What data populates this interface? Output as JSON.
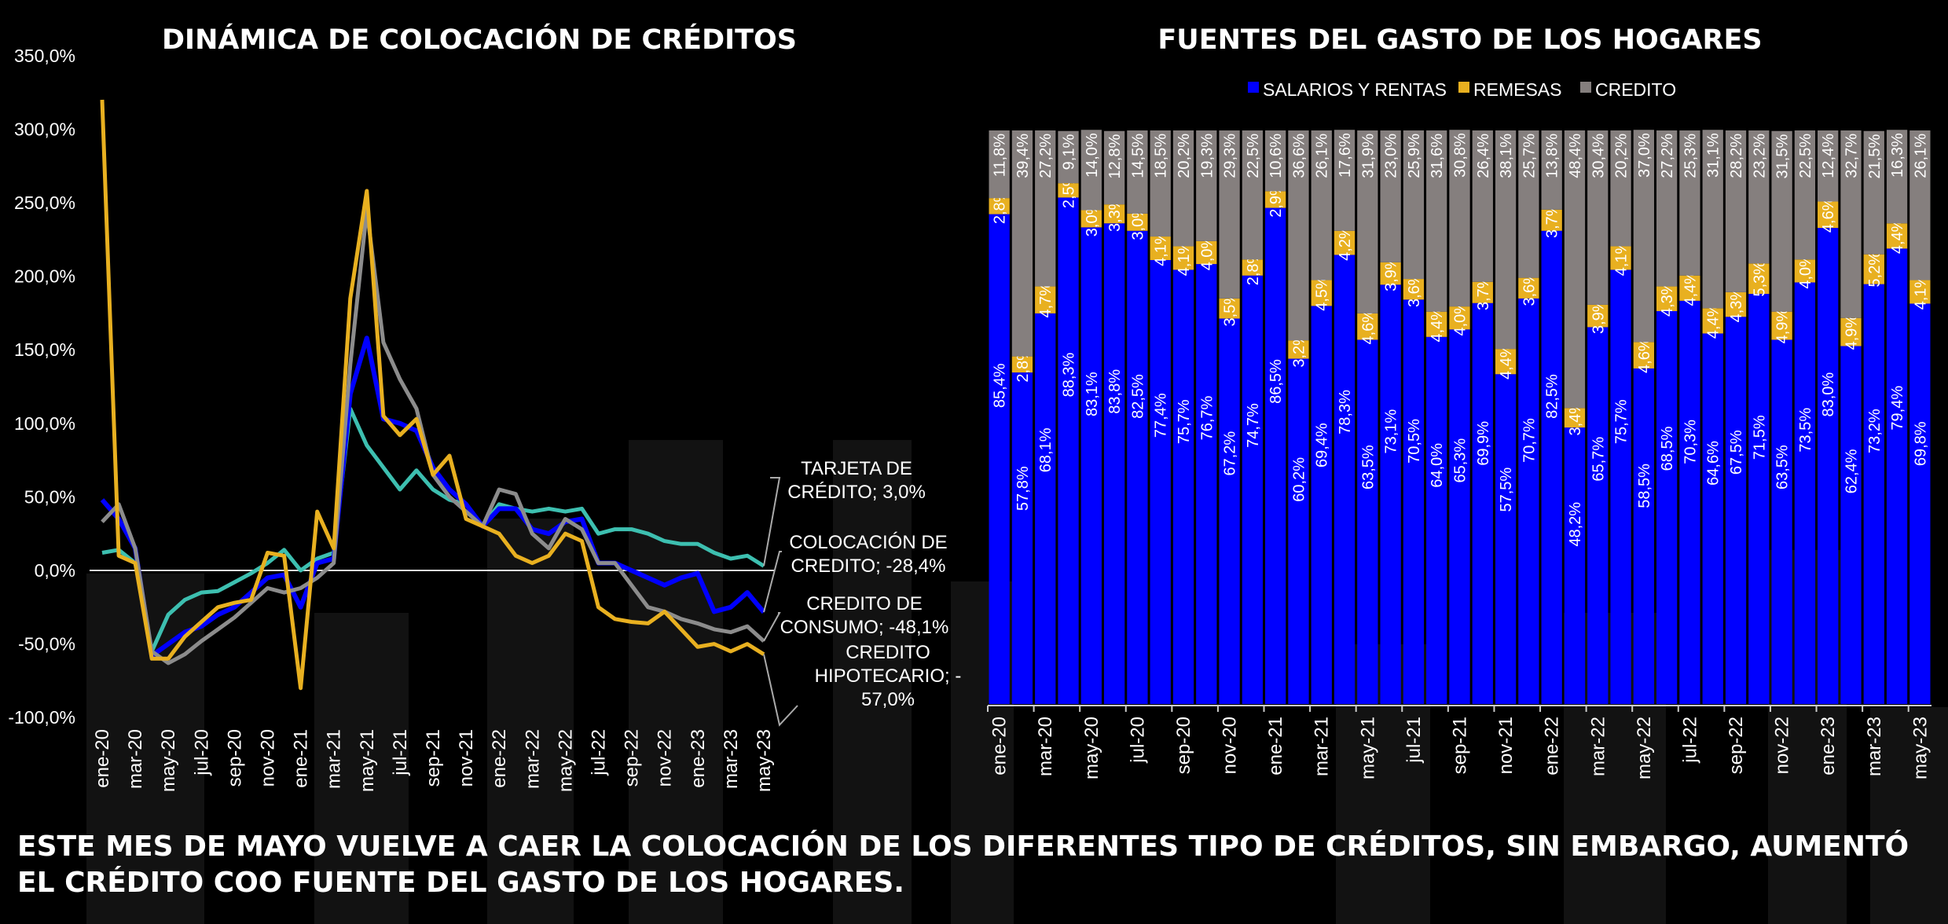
{
  "footer_text": "ESTE MES DE MAYO VUELVE A CAER LA COLOCACIÓN DE LOS DIFERENTES TIPO DE CRÉDITOS, SIN EMBARGO, AUMENTÓ EL CRÉDITO COO FUENTE DEL GASTO DE LOS HOGARES.",
  "chart_data": [
    {
      "type": "line",
      "title": "DINÁMICA DE COLOCACIÓN DE CRÉDITOS",
      "ylim": [
        -100,
        350
      ],
      "yticks": [
        "350,0%",
        "300,0%",
        "250,0%",
        "200,0%",
        "150,0%",
        "100,0%",
        "50,0%",
        "0,0%",
        "-50,0%",
        "-100,0%"
      ],
      "grid": false,
      "categories": [
        "ene-20",
        "feb-20",
        "mar-20",
        "abr-20",
        "may-20",
        "jun-20",
        "jul-20",
        "ago-20",
        "sep-20",
        "oct-20",
        "nov-20",
        "dic-20",
        "ene-21",
        "feb-21",
        "mar-21",
        "abr-21",
        "may-21",
        "jun-21",
        "jul-21",
        "ago-21",
        "sep-21",
        "oct-21",
        "nov-21",
        "dic-21",
        "ene-22",
        "feb-22",
        "mar-22",
        "abr-22",
        "may-22",
        "jun-22",
        "jul-22",
        "ago-22",
        "sep-22",
        "oct-22",
        "nov-22",
        "dic-22",
        "ene-23",
        "feb-23",
        "mar-23",
        "abr-23",
        "may-23"
      ],
      "xtick_labels": [
        "ene-20",
        "mar-20",
        "may-20",
        "jul-20",
        "sep-20",
        "nov-20",
        "ene-21",
        "mar-21",
        "may-21",
        "jul-21",
        "sep-21",
        "nov-21",
        "ene-22",
        "mar-22",
        "may-22",
        "jul-22",
        "sep-22",
        "nov-22",
        "ene-23",
        "mar-23",
        "may-23"
      ],
      "series": [
        {
          "label": "TARJETA DE CRÉDITO; 3,0%",
          "color": "#3dbfb0",
          "values": [
            12,
            14,
            5,
            -55,
            -30,
            -20,
            -15,
            -14,
            -8,
            -2,
            5,
            14,
            0,
            8,
            12,
            110,
            85,
            70,
            55,
            68,
            55,
            48,
            45,
            30,
            45,
            42,
            40,
            42,
            40,
            42,
            25,
            28,
            28,
            25,
            20,
            18,
            18,
            12,
            8,
            10,
            3
          ]
        },
        {
          "label": "COLOCACIÓN DE CREDITO; -28,4%",
          "color": "#0000ff",
          "values": [
            48,
            35,
            15,
            -58,
            -50,
            -42,
            -38,
            -30,
            -25,
            -15,
            -5,
            -3,
            -25,
            5,
            8,
            120,
            158,
            103,
            100,
            95,
            70,
            55,
            45,
            30,
            42,
            42,
            28,
            25,
            33,
            35,
            5,
            5,
            0,
            -5,
            -10,
            -5,
            -2,
            -28,
            -25,
            -15,
            -28.4
          ]
        },
        {
          "label": "CREDITO DE CONSUMO; -48,1%",
          "color": "#8c8c8c",
          "values": [
            33,
            45,
            15,
            -55,
            -63,
            -57,
            -48,
            -40,
            -32,
            -22,
            -12,
            -15,
            -12,
            -5,
            5,
            140,
            245,
            155,
            130,
            110,
            65,
            50,
            40,
            30,
            55,
            52,
            25,
            15,
            35,
            28,
            5,
            5,
            -10,
            -25,
            -28,
            -33,
            -36,
            -40,
            -42,
            -38,
            -48.1
          ]
        },
        {
          "label": "CREDITO HIPOTECARIO; -57,0%",
          "color": "#e8b020",
          "values": [
            320,
            10,
            5,
            -60,
            -60,
            -45,
            -35,
            -25,
            -22,
            -20,
            12,
            10,
            -80,
            40,
            15,
            185,
            258,
            105,
            92,
            103,
            65,
            78,
            35,
            30,
            25,
            10,
            5,
            10,
            25,
            20,
            -25,
            -33,
            -35,
            -36,
            -28,
            -40,
            -52,
            -50,
            -55,
            -50,
            -57
          ]
        }
      ]
    },
    {
      "type": "bar",
      "stacked": true,
      "title": "FUENTES DEL GASTO DE LOS HOGARES",
      "ylim": [
        0,
        100
      ],
      "legend": "top",
      "categories": [
        "ene-20",
        "feb-20",
        "mar-20",
        "abr-20",
        "may-20",
        "jun-20",
        "jul-20",
        "ago-20",
        "sep-20",
        "oct-20",
        "nov-20",
        "dic-20",
        "ene-21",
        "feb-21",
        "mar-21",
        "abr-21",
        "may-21",
        "jun-21",
        "jul-21",
        "ago-21",
        "sep-21",
        "oct-21",
        "nov-21",
        "dic-21",
        "ene-22",
        "feb-22",
        "mar-22",
        "abr-22",
        "may-22",
        "jun-22",
        "jul-22",
        "ago-22",
        "sep-22",
        "oct-22",
        "nov-22",
        "dic-22",
        "ene-23",
        "feb-23",
        "mar-23",
        "abr-23",
        "may-23"
      ],
      "xtick_labels": [
        "ene-20",
        "mar-20",
        "may-20",
        "jul-20",
        "sep-20",
        "nov-20",
        "ene-21",
        "mar-21",
        "may-21",
        "jul-21",
        "sep-21",
        "nov-21",
        "ene-22",
        "mar-22",
        "may-22",
        "jul-22",
        "sep-22",
        "nov-22",
        "ene-23",
        "mar-23",
        "may-23"
      ],
      "series": [
        {
          "name": "SALARIOS Y RENTAS",
          "color": "#0000ff",
          "values": [
            85.4,
            57.8,
            68.1,
            88.3,
            83.1,
            83.8,
            82.5,
            77.4,
            75.7,
            76.7,
            67.2,
            74.7,
            86.5,
            60.2,
            69.4,
            78.3,
            63.5,
            73.1,
            70.5,
            64.0,
            65.3,
            69.9,
            57.5,
            70.7,
            82.5,
            48.2,
            65.7,
            75.7,
            58.5,
            68.5,
            70.3,
            64.6,
            67.5,
            71.5,
            63.5,
            73.5,
            83.0,
            62.4,
            73.2,
            79.4,
            69.8
          ]
        },
        {
          "name": "REMESAS",
          "color": "#e8b020",
          "values": [
            2.8,
            2.8,
            4.7,
            2.5,
            3.0,
            3.3,
            3.0,
            4.1,
            4.1,
            4.0,
            3.5,
            2.8,
            2.9,
            3.2,
            4.5,
            4.2,
            4.6,
            3.9,
            3.6,
            4.4,
            4.0,
            3.7,
            4.4,
            3.6,
            3.7,
            3.4,
            3.9,
            4.1,
            4.6,
            4.3,
            4.4,
            4.4,
            4.3,
            5.3,
            4.9,
            4.0,
            4.6,
            4.9,
            5.2,
            4.4,
            4.1
          ]
        },
        {
          "name": "CREDITO",
          "color": "#857f7e",
          "values": [
            11.8,
            39.4,
            27.2,
            9.1,
            14.0,
            12.8,
            14.5,
            18.5,
            20.2,
            19.3,
            29.3,
            22.5,
            10.6,
            36.6,
            26.1,
            17.6,
            31.9,
            23.0,
            25.9,
            31.6,
            30.8,
            26.4,
            38.1,
            25.7,
            13.8,
            48.4,
            30.4,
            20.2,
            37.0,
            27.2,
            25.3,
            31.1,
            28.2,
            23.2,
            31.5,
            22.5,
            12.4,
            32.7,
            21.5,
            16.3,
            26.1
          ]
        }
      ]
    }
  ]
}
